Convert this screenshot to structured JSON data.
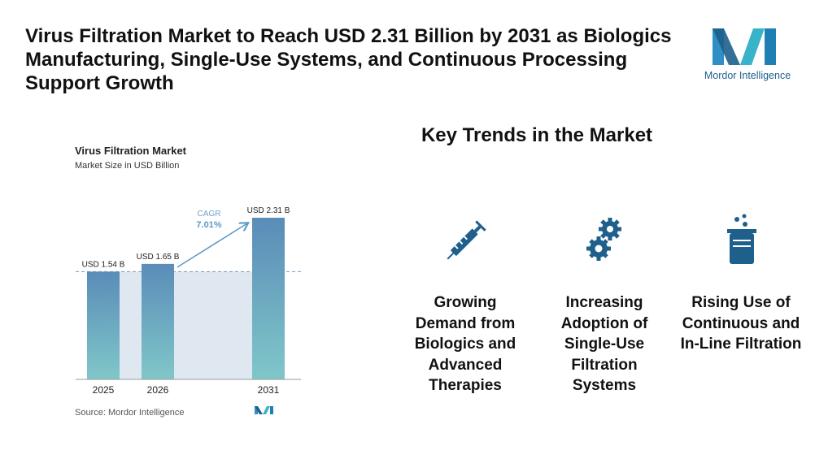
{
  "header": {
    "title": "Virus Filtration Market to Reach USD 2.31 Billion by 2031 as Biologics Manufacturing, Single-Use Systems, and Continuous Processing Support Growth",
    "logo_text": "Mordor Intelligence"
  },
  "chart_data": {
    "type": "bar",
    "title": "Virus Filtration Market",
    "subtitle": "Market Size in USD Billion",
    "categories": [
      "2025",
      "2026",
      "2031"
    ],
    "values": [
      1.54,
      1.65,
      2.31
    ],
    "value_labels": [
      "USD 1.54 B",
      "USD 1.65 B",
      "USD 2.31 B"
    ],
    "annotation": "CAGR",
    "annotation_value": "7.01%",
    "colors": [
      "#5a8cb8",
      "#80c7c9"
    ],
    "source": "Source:  Mordor Intelligence"
  },
  "trends": {
    "title": "Key Trends in the Market",
    "items": [
      "Growing Demand from Biologics and Advanced Therapies",
      "Increasing Adoption of Single-Use Filtration Systems",
      "Rising Use of Continuous and In-Line Filtration"
    ]
  }
}
